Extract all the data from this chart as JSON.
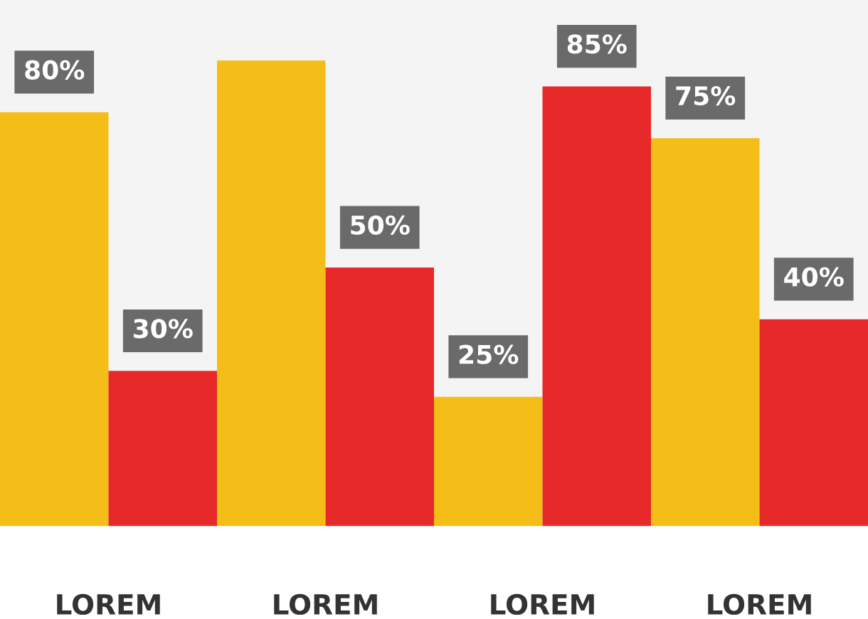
{
  "chart_data": {
    "type": "bar",
    "categories": [
      "LOREM",
      "LOREM",
      "LOREM",
      "LOREM"
    ],
    "series": [
      {
        "color": "#f5bd17",
        "values": [
          80,
          90,
          25,
          75
        ],
        "value_labels": [
          "80%",
          null,
          "25%",
          "75%"
        ]
      },
      {
        "color": "#e8292a",
        "values": [
          30,
          50,
          85,
          40
        ],
        "value_labels": [
          "30%",
          "50%",
          "85%",
          "40%"
        ]
      }
    ],
    "legend": false,
    "grid": false
  }
}
